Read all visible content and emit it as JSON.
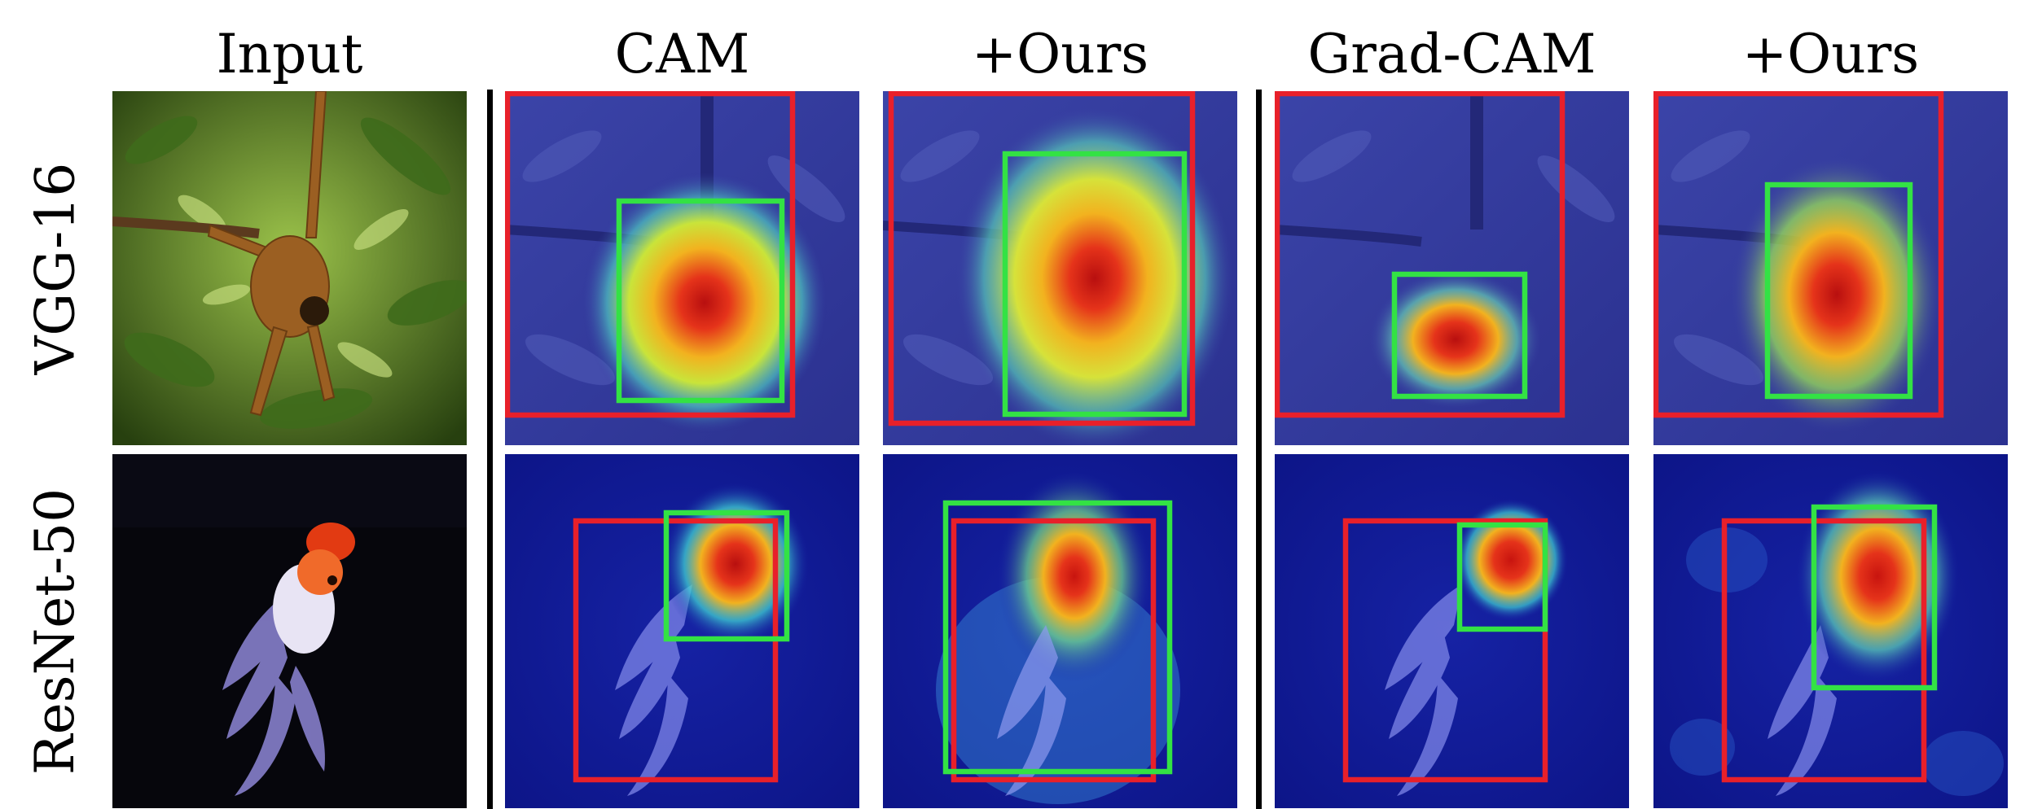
{
  "columns": [
    {
      "label": "Input"
    },
    {
      "label": "CAM"
    },
    {
      "label": "+Ours"
    },
    {
      "label": "Grad-CAM"
    },
    {
      "label": "+Ours"
    }
  ],
  "rows": [
    {
      "label": "VGG-16",
      "subject": "spider-monkey"
    },
    {
      "label": "ResNet-50",
      "subject": "goldfish"
    }
  ],
  "colors": {
    "ground_truth_box": "#e8202a",
    "predicted_box": "#33e244",
    "separator": "#000000"
  }
}
